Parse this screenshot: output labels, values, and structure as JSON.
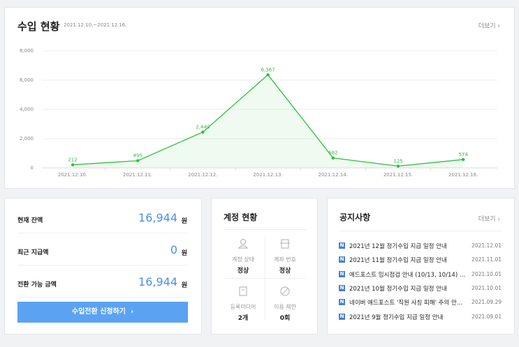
{
  "header": {
    "title": "수입 현황",
    "period": "2021.12.10.~2021.12.16.",
    "more": "더보기"
  },
  "chart_data": {
    "type": "line",
    "categories": [
      "2021.12.10.",
      "2021.12.11.",
      "2021.12.12.",
      "2021.12.13.",
      "2021.12.14.",
      "2021.12.15.",
      "2021.12.16."
    ],
    "series": [
      {
        "color": "#2fbf3f",
        "values": [
          212,
          495,
          2449,
          6367,
          682,
          125,
          574
        ],
        "value_labels": [
          "212",
          "495",
          "2,449",
          "6,367",
          "682",
          "125",
          "574"
        ]
      }
    ],
    "ylim": [
      0,
      8000
    ],
    "yticks": [
      0,
      {
        "value": 2000,
        "label": "2,000"
      },
      {
        "value": 4000,
        "label": "4,000"
      },
      {
        "value": 6000,
        "label": "6,000"
      },
      {
        "value": 8000,
        "label": "8,000"
      }
    ],
    "grid": true
  },
  "balance": {
    "rows": [
      {
        "label": "현재 잔액",
        "value": "16,944",
        "unit": "원"
      },
      {
        "label": "최근 지급액",
        "value": "0",
        "unit": "원"
      },
      {
        "label": "전환 가능 금액",
        "value": "16,944",
        "unit": "원"
      }
    ],
    "button": "수입전환 신청하기"
  },
  "account": {
    "title": "계정 현황",
    "items": [
      {
        "label": "계정 상태",
        "value": "정상"
      },
      {
        "label": "계좌 번호",
        "value": "정상"
      },
      {
        "label": "등록미디어",
        "value": "2개"
      },
      {
        "label": "이용 제한",
        "value": "0회"
      }
    ]
  },
  "notices": {
    "title": "공지사항",
    "more": "더보기",
    "badge": "N",
    "items": [
      {
        "title": "2021년 12월 정기수입 지급 일정 안내",
        "date": "2021.12.01"
      },
      {
        "title": "2021년 11월 정기수입 지급 일정 안내",
        "date": "2021.11.01"
      },
      {
        "title": "애드포스트 임시점검 안내 (10/13, 10/14) …",
        "date": "2021.10.01"
      },
      {
        "title": "2021년 10월 정기수입 지급 일정 안내",
        "date": "2021.10.01"
      },
      {
        "title": "네이버 애드포스트 '직원 사칭 피해' 주의 안…",
        "date": "2021.09.29"
      },
      {
        "title": "2021년 9월 정기수입 지급 일정 안내",
        "date": "2021.09.01"
      }
    ]
  }
}
